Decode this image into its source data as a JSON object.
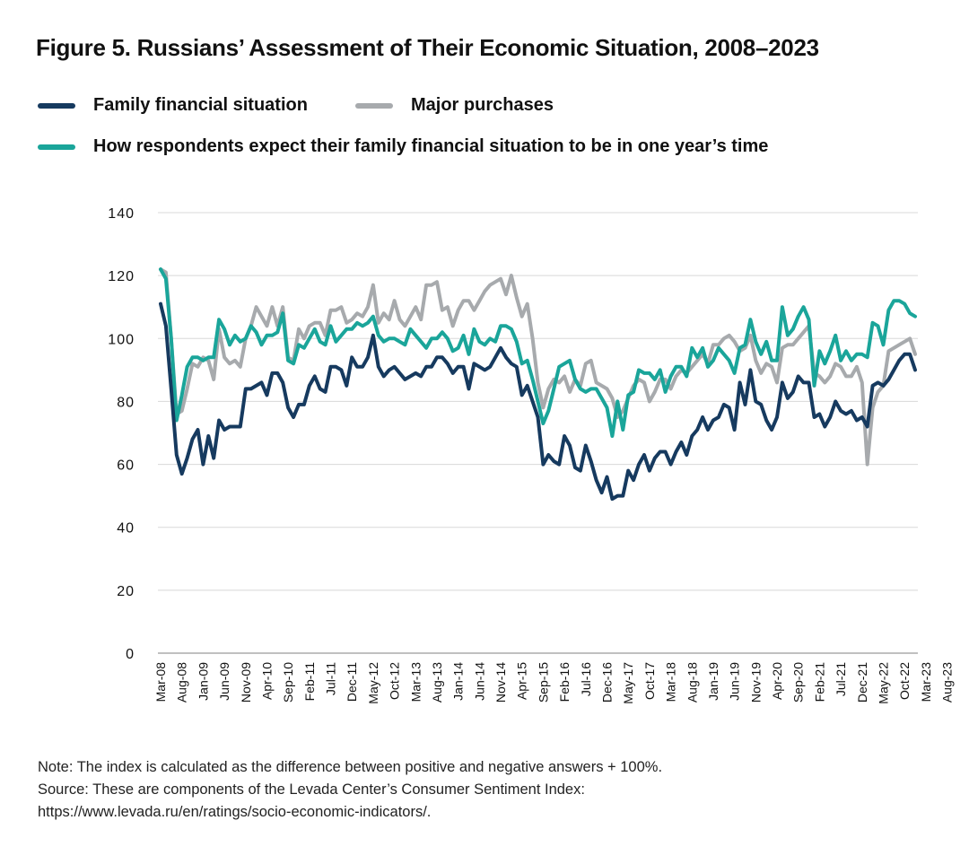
{
  "title": "Figure 5. Russians’ Assessment of Their Economic Situation, 2008–2023",
  "legend": [
    {
      "label": "Family financial situation",
      "color": "#163a5f"
    },
    {
      "label": "Major purchases",
      "color": "#a7aaad"
    },
    {
      "label": "How respondents expect their family financial situation to be in one year’s time",
      "color": "#1aa59a"
    }
  ],
  "notes": {
    "line1": "Note: The index is calculated as the difference between positive and negative answers + 100%.",
    "line2": "Source: These are components of the Levada Center’s Consumer Sentiment Index:",
    "line3": "https://www.levada.ru/en/ratings/socio-economic-indicators/."
  },
  "chart_data": {
    "type": "line",
    "ylim": [
      0,
      140
    ],
    "y_ticks": [
      0,
      20,
      40,
      60,
      80,
      100,
      120,
      140
    ],
    "grid": true,
    "legend_position": "top",
    "x_tick_labels": [
      "Mar-08",
      "Aug-08",
      "Jan-09",
      "Jun-09",
      "Nov-09",
      "Apr-10",
      "Sep-10",
      "Feb-11",
      "Jul-11",
      "Dec-11",
      "May-12",
      "Oct-12",
      "Mar-13",
      "Aug-13",
      "Jan-14",
      "Jun-14",
      "Nov-14",
      "Apr-15",
      "Sep-15",
      "Feb-16",
      "Jul-16",
      "Dec-16",
      "May-17",
      "Oct-17",
      "Mar-18",
      "Aug-18",
      "Jan-19",
      "Jun-19",
      "Nov-19",
      "Apr-20",
      "Sep-20",
      "Feb-21",
      "Jul-21",
      "Dec-21",
      "May-22",
      "Oct-22",
      "Mar-23",
      "Aug-23"
    ],
    "series": [
      {
        "name": "Family financial situation",
        "color": "#163a5f",
        "values": [
          111,
          104,
          84,
          63,
          57,
          62,
          68,
          71,
          60,
          69,
          62,
          74,
          71,
          72,
          72,
          72,
          84,
          84,
          85,
          86,
          82,
          89,
          89,
          86,
          78,
          75,
          79,
          79,
          85,
          88,
          84,
          83,
          91,
          91,
          90,
          85,
          94,
          91,
          91,
          94,
          101,
          91,
          88,
          90,
          91,
          89,
          87,
          88,
          89,
          88,
          91,
          91,
          94,
          94,
          92,
          89,
          91,
          91,
          84,
          92,
          91,
          90,
          91,
          94,
          97,
          94,
          92,
          91,
          82,
          85,
          80,
          75,
          60,
          63,
          61,
          60,
          69,
          66,
          59,
          58,
          66,
          61,
          55,
          51,
          56,
          49,
          50,
          50,
          58,
          55,
          60,
          63,
          58,
          62,
          64,
          64,
          60,
          64,
          67,
          63,
          69,
          71,
          75,
          71,
          74,
          75,
          79,
          78,
          71,
          86,
          79,
          90,
          80,
          79,
          74,
          71,
          75,
          86,
          81,
          83,
          88,
          86,
          86,
          75,
          76,
          72,
          75,
          80,
          77,
          76,
          77,
          74,
          75,
          72,
          85,
          86,
          85,
          87,
          90,
          93,
          95,
          95,
          90
        ]
      },
      {
        "name": "Major purchases",
        "color": "#a7aaad",
        "values": [
          122,
          121,
          100,
          76,
          77,
          84,
          92,
          91,
          94,
          93,
          87,
          103,
          94,
          92,
          93,
          91,
          100,
          104,
          110,
          107,
          104,
          110,
          104,
          110,
          94,
          93,
          103,
          100,
          104,
          105,
          105,
          101,
          109,
          109,
          110,
          105,
          106,
          108,
          107,
          110,
          117,
          105,
          108,
          106,
          112,
          106,
          104,
          107,
          110,
          106,
          117,
          117,
          118,
          109,
          110,
          104,
          109,
          112,
          112,
          109,
          112,
          115,
          117,
          118,
          119,
          114,
          120,
          113,
          107,
          111,
          100,
          86,
          78,
          84,
          87,
          86,
          88,
          83,
          87,
          85,
          92,
          93,
          86,
          85,
          84,
          81,
          75,
          77,
          81,
          85,
          87,
          86,
          80,
          83,
          87,
          87,
          84,
          88,
          90,
          89,
          91,
          93,
          95,
          92,
          98,
          98,
          100,
          101,
          99,
          96,
          97,
          101,
          93,
          89,
          92,
          91,
          86,
          97,
          98,
          98,
          100,
          102,
          104,
          89,
          88,
          86,
          88,
          92,
          91,
          88,
          88,
          91,
          86,
          60,
          78,
          83,
          85,
          96,
          97,
          98,
          99,
          100,
          95
        ]
      },
      {
        "name": "How respondents expect their family financial situation to be in one year’s time",
        "color": "#1aa59a",
        "values": [
          122,
          119,
          100,
          74,
          82,
          91,
          94,
          94,
          93,
          94,
          94,
          106,
          103,
          98,
          101,
          99,
          100,
          104,
          102,
          98,
          101,
          101,
          102,
          108,
          93,
          92,
          98,
          97,
          100,
          103,
          99,
          98,
          104,
          99,
          101,
          103,
          103,
          105,
          104,
          105,
          107,
          101,
          99,
          100,
          100,
          99,
          98,
          103,
          101,
          99,
          97,
          100,
          100,
          102,
          100,
          96,
          97,
          101,
          95,
          103,
          99,
          98,
          100,
          99,
          104,
          104,
          103,
          99,
          92,
          93,
          87,
          80,
          73,
          77,
          84,
          91,
          92,
          93,
          87,
          84,
          83,
          84,
          84,
          81,
          78,
          69,
          80,
          71,
          82,
          83,
          90,
          89,
          89,
          87,
          90,
          83,
          88,
          91,
          91,
          88,
          97,
          94,
          97,
          91,
          93,
          97,
          95,
          93,
          89,
          97,
          98,
          106,
          99,
          95,
          99,
          93,
          93,
          110,
          101,
          103,
          107,
          110,
          106,
          85,
          96,
          92,
          96,
          101,
          93,
          96,
          93,
          95,
          95,
          94,
          105,
          104,
          98,
          109,
          112,
          112,
          111,
          108,
          107
        ]
      }
    ]
  }
}
